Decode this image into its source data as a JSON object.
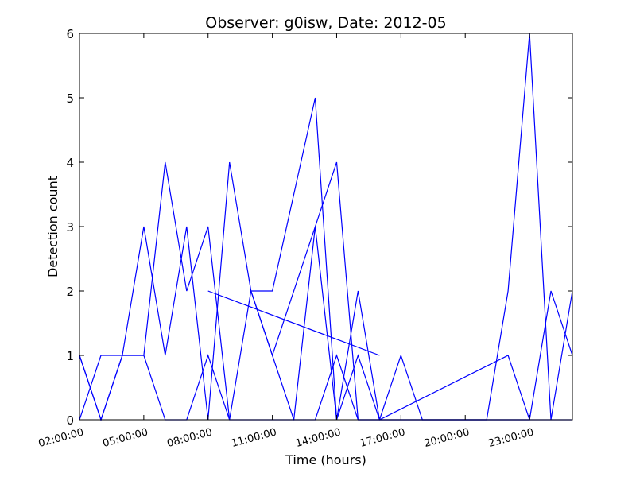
{
  "chart_data": {
    "type": "line",
    "title": "Observer: g0isw, Date: 2012-05",
    "xlabel": "Time (hours)",
    "ylabel": "Detection count",
    "x_ticks": [
      "02:00:00",
      "05:00:00",
      "08:00:00",
      "11:00:00",
      "14:00:00",
      "17:00:00",
      "20:00:00",
      "23:00:00"
    ],
    "x_tick_hours": [
      2,
      5,
      8,
      11,
      14,
      17,
      20,
      23
    ],
    "xlim_hours": [
      2,
      25
    ],
    "ylim": [
      0,
      6
    ],
    "y_ticks": [
      0,
      1,
      2,
      3,
      4,
      5,
      6
    ],
    "grid": false,
    "line_color": "#0000ff",
    "series": [
      {
        "points": [
          [
            2,
            1
          ],
          [
            3,
            0
          ],
          [
            4,
            1
          ],
          [
            5,
            3
          ],
          [
            6,
            1
          ],
          [
            7,
            3
          ],
          [
            8,
            0
          ],
          [
            9,
            4
          ],
          [
            10,
            2
          ],
          [
            11,
            2
          ],
          [
            13,
            5
          ],
          [
            14,
            0
          ],
          [
            15,
            2
          ],
          [
            16,
            0
          ],
          [
            17,
            1
          ],
          [
            18,
            0
          ],
          [
            19,
            0
          ],
          [
            20,
            0
          ],
          [
            21,
            0
          ],
          [
            22,
            2
          ],
          [
            23,
            6
          ],
          [
            24,
            0
          ],
          [
            25,
            2
          ]
        ]
      },
      {
        "points": [
          [
            2,
            0
          ],
          [
            3,
            1
          ],
          [
            4,
            1
          ],
          [
            5,
            1
          ],
          [
            6,
            4
          ],
          [
            7,
            2
          ],
          [
            8,
            3
          ],
          [
            9,
            0
          ],
          [
            10,
            0
          ],
          [
            11,
            0
          ],
          [
            12,
            0
          ],
          [
            13,
            3
          ],
          [
            14,
            0
          ],
          [
            15,
            1
          ],
          [
            16,
            0
          ],
          [
            17,
            0
          ],
          [
            18,
            0
          ],
          [
            19,
            0
          ],
          [
            20,
            0
          ],
          [
            21,
            0
          ],
          [
            22,
            0
          ],
          [
            23,
            0
          ],
          [
            24,
            2
          ],
          [
            25,
            1
          ]
        ]
      },
      {
        "points": [
          [
            2,
            1
          ],
          [
            3,
            0
          ],
          [
            4,
            1
          ],
          [
            5,
            1
          ],
          [
            6,
            0
          ],
          [
            7,
            0
          ],
          [
            8,
            1
          ],
          [
            9,
            0
          ],
          [
            10,
            2
          ],
          [
            11,
            1
          ],
          [
            12,
            0
          ],
          [
            13,
            0
          ],
          [
            14,
            1
          ],
          [
            15,
            0
          ],
          [
            16,
            0
          ],
          [
            17,
            0
          ],
          [
            18,
            0
          ],
          [
            19,
            0
          ],
          [
            20,
            0
          ],
          [
            21,
            0
          ],
          [
            22,
            0
          ],
          [
            23,
            0
          ],
          [
            24,
            0
          ],
          [
            25,
            0
          ]
        ]
      },
      {
        "points": [
          [
            8,
            2
          ],
          [
            16,
            1
          ]
        ]
      },
      {
        "points": [
          [
            10,
            2
          ],
          [
            11,
            1
          ],
          [
            14,
            4
          ],
          [
            15,
            0
          ]
        ]
      },
      {
        "points": [
          [
            15,
            0
          ],
          [
            16,
            0
          ],
          [
            22,
            1
          ],
          [
            23,
            0
          ]
        ]
      }
    ]
  }
}
